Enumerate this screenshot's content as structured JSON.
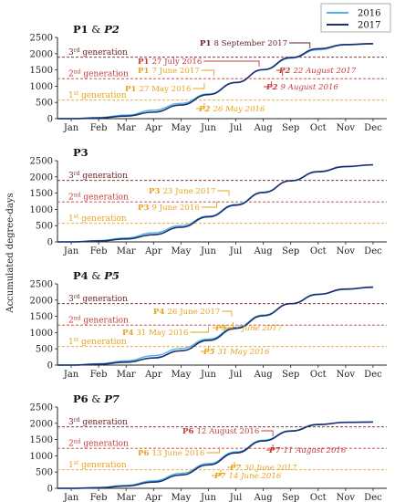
{
  "y_axis_label": "Accumulated degree-days",
  "legend": [
    {
      "name": "2016",
      "color": "#4fb3e8"
    },
    {
      "name": "2017",
      "color": "#1c2e6e"
    }
  ],
  "colors": {
    "gen1": "#e8a21e",
    "gen2": "#c43b3b",
    "gen3": "#6b1f1f",
    "axis": "#222222"
  },
  "chart_data": [
    {
      "type": "line",
      "title": [
        "P1",
        " & ",
        "P2"
      ],
      "title_style": [
        "bold",
        "normal",
        "italic"
      ],
      "x": [
        "Jan",
        "Feb",
        "Mar",
        "Apr",
        "May",
        "Jun",
        "Jul",
        "Aug",
        "Sep",
        "Oct",
        "Nov",
        "Dec"
      ],
      "ylim": [
        0,
        2500
      ],
      "yticks": [
        0,
        500,
        1000,
        1500,
        2000,
        2500
      ],
      "generations": [
        {
          "label": "1st generation",
          "value": 570,
          "color": "#e8a21e"
        },
        {
          "label": "2nd generation",
          "value": 1230,
          "color": "#c43b3b"
        },
        {
          "label": "3rd generation",
          "value": 1890,
          "color": "#6b1f1f"
        }
      ],
      "series": [
        {
          "name": "2016",
          "values": [
            0,
            35,
            110,
            260,
            470,
            760,
            1120,
            1500,
            1860,
            2120,
            2270,
            2300
          ]
        },
        {
          "name": "2017",
          "values": [
            0,
            20,
            80,
            200,
            420,
            740,
            1110,
            1510,
            1880,
            2150,
            2280,
            2310
          ]
        }
      ],
      "annotations": [
        {
          "id": "P1",
          "text": "8 September 2017",
          "color": "#6b1f1f",
          "italic": false,
          "month": 8.7
        },
        {
          "id": "P1",
          "text": "27 July 2016",
          "color": "#c43b3b",
          "italic": false,
          "month": 6.85
        },
        {
          "id": "P1",
          "text": "7 June 2017",
          "color": "#e8a21e",
          "italic": false,
          "month": 5.2
        },
        {
          "id": "P1",
          "text": "27 May 2016",
          "color": "#e8a21e",
          "italic": false,
          "month": 4.85
        },
        {
          "id": "P2",
          "text": "22 August 2017",
          "color": "#c43b3b",
          "italic": true,
          "month": 7.7
        },
        {
          "id": "P2",
          "text": "9 August 2016",
          "color": "#c43b3b",
          "italic": true,
          "month": 7.3
        },
        {
          "id": "P2",
          "text": "26 May 2016",
          "color": "#e8a21e",
          "italic": true,
          "month": 4.85
        }
      ]
    },
    {
      "type": "line",
      "title": [
        "P3"
      ],
      "title_style": [
        "bold"
      ],
      "x": [
        "Jan",
        "Feb",
        "Mar",
        "Apr",
        "May",
        "Jun",
        "Jul",
        "Aug",
        "Sep",
        "Oct",
        "Nov",
        "Dec"
      ],
      "ylim": [
        0,
        2500
      ],
      "yticks": [
        0,
        500,
        1000,
        1500,
        2000,
        2500
      ],
      "generations": [
        {
          "label": "1st generation",
          "value": 570,
          "color": "#e8a21e"
        },
        {
          "label": "2nd generation",
          "value": 1230,
          "color": "#c43b3b"
        },
        {
          "label": "3rd generation",
          "value": 1890,
          "color": "#6b1f1f"
        }
      ],
      "series": [
        {
          "name": "2016",
          "values": [
            0,
            40,
            120,
            280,
            500,
            790,
            1150,
            1530,
            1880,
            2150,
            2310,
            2380
          ]
        },
        {
          "name": "2017",
          "values": [
            0,
            25,
            90,
            220,
            450,
            770,
            1130,
            1520,
            1880,
            2160,
            2320,
            2370
          ]
        }
      ],
      "annotations": [
        {
          "id": "P3",
          "text": "23 June 2017",
          "color": "#e8a21e",
          "italic": false,
          "month": 5.75
        },
        {
          "id": "P3",
          "text": "9 June 2016",
          "color": "#e8a21e",
          "italic": false,
          "month": 5.3
        }
      ]
    },
    {
      "type": "line",
      "title": [
        "P4",
        " & ",
        "P5"
      ],
      "title_style": [
        "bold",
        "normal",
        "italic"
      ],
      "x": [
        "Jan",
        "Feb",
        "Mar",
        "Apr",
        "May",
        "Jun",
        "Jul",
        "Aug",
        "Sep",
        "Oct",
        "Nov",
        "Dec"
      ],
      "ylim": [
        0,
        2500
      ],
      "yticks": [
        0,
        500,
        1000,
        1500,
        2000,
        2500
      ],
      "generations": [
        {
          "label": "1st generation",
          "value": 570,
          "color": "#e8a21e"
        },
        {
          "label": "2nd generation",
          "value": 1230,
          "color": "#c43b3b"
        },
        {
          "label": "3rd generation",
          "value": 1890,
          "color": "#6b1f1f"
        }
      ],
      "series": [
        {
          "name": "2016",
          "values": [
            0,
            45,
            130,
            290,
            510,
            800,
            1160,
            1540,
            1890,
            2170,
            2330,
            2390
          ]
        },
        {
          "name": "2017",
          "values": [
            0,
            25,
            90,
            220,
            440,
            760,
            1130,
            1520,
            1890,
            2180,
            2340,
            2400
          ]
        }
      ],
      "annotations": [
        {
          "id": "P4",
          "text": "26 June 2017",
          "color": "#e8a21e",
          "italic": false,
          "month": 5.85
        },
        {
          "id": "P5",
          "text": "27 June 2017",
          "color": "#e8a21e",
          "italic": true,
          "month": 5.9
        },
        {
          "id": "P4",
          "text": "31 May 2016",
          "color": "#e8a21e",
          "italic": false,
          "month": 5.0
        },
        {
          "id": "P5",
          "text": "31 May 2016",
          "color": "#e8a21e",
          "italic": true,
          "month": 5.0
        }
      ]
    },
    {
      "type": "line",
      "title": [
        "P6",
        " & ",
        "P7"
      ],
      "title_style": [
        "bold",
        "normal",
        "italic"
      ],
      "x": [
        "Jan",
        "Feb",
        "Mar",
        "Apr",
        "May",
        "Jun",
        "Jul",
        "Aug",
        "Sep",
        "Oct",
        "Nov",
        "Dec"
      ],
      "ylim": [
        0,
        2500
      ],
      "yticks": [
        0,
        500,
        1000,
        1500,
        2000,
        2500
      ],
      "generations": [
        {
          "label": "1st generation",
          "value": 570,
          "color": "#e8a21e"
        },
        {
          "label": "2nd generation",
          "value": 1230,
          "color": "#c43b3b"
        },
        {
          "label": "3rd generation",
          "value": 1890,
          "color": "#6b1f1f"
        }
      ],
      "series": [
        {
          "name": "2016",
          "values": [
            0,
            25,
            90,
            230,
            460,
            760,
            1120,
            1480,
            1770,
            1970,
            2030,
            2040
          ]
        },
        {
          "name": "2017",
          "values": [
            0,
            15,
            70,
            190,
            410,
            720,
            1090,
            1460,
            1760,
            1960,
            2030,
            2040
          ]
        }
      ],
      "annotations": [
        {
          "id": "P6",
          "text": "12 August 2016",
          "color": "#c43b3b",
          "italic": false,
          "month": 7.35
        },
        {
          "id": "P7",
          "text": "11 August 2016",
          "color": "#c43b3b",
          "italic": true,
          "month": 7.35
        },
        {
          "id": "P6",
          "text": "13 June 2016",
          "color": "#e8a21e",
          "italic": false,
          "month": 5.4
        },
        {
          "id": "P7",
          "text": "30 June 2017",
          "color": "#e8a21e",
          "italic": true,
          "month": 5.95
        },
        {
          "id": "P7",
          "text": "14 June 2016",
          "color": "#e8a21e",
          "italic": true,
          "month": 5.45
        }
      ]
    }
  ]
}
